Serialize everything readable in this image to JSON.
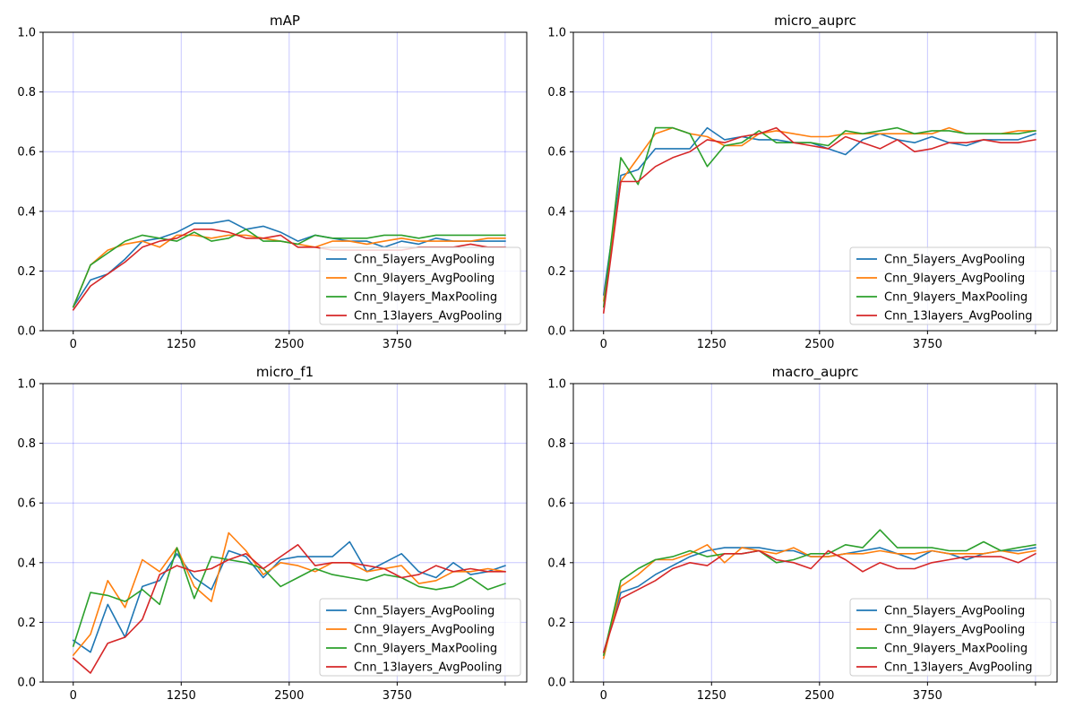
{
  "figure": {
    "legend_location": "lower right",
    "grid_color": "#0000ff"
  },
  "chart_data": [
    {
      "type": "line",
      "title": "mAP",
      "xlabel": "",
      "ylabel": "",
      "xlim": [
        -350,
        5250
      ],
      "ylim": [
        0,
        1
      ],
      "xticks": [
        0,
        1250,
        2500,
        3750,
        5000
      ],
      "xtick_labels": [
        "0",
        "1250",
        "2500",
        "3750",
        ""
      ],
      "yticks": [
        0,
        0.2,
        0.4,
        0.6,
        0.8,
        1.0
      ],
      "ytick_labels": [
        "0.0",
        "0.2",
        "0.4",
        "0.6",
        "0.8",
        "1.0"
      ],
      "x": [
        0,
        200,
        400,
        600,
        800,
        1000,
        1200,
        1400,
        1600,
        1800,
        2000,
        2200,
        2400,
        2600,
        2800,
        3000,
        3200,
        3400,
        3600,
        3800,
        4000,
        4200,
        4400,
        4600,
        4800,
        5000
      ],
      "series": [
        {
          "name": "Cnn_5layers_AvgPooling",
          "color": "#1f77b4",
          "values": [
            0.08,
            0.17,
            0.19,
            0.24,
            0.3,
            0.31,
            0.33,
            0.36,
            0.36,
            0.37,
            0.34,
            0.35,
            0.33,
            0.3,
            0.32,
            0.31,
            0.3,
            0.3,
            0.28,
            0.3,
            0.29,
            0.31,
            0.3,
            0.3,
            0.3,
            0.3
          ]
        },
        {
          "name": "Cnn_9layers_AvgPooling",
          "color": "#ff7f0e",
          "values": [
            0.08,
            0.22,
            0.27,
            0.29,
            0.3,
            0.28,
            0.32,
            0.32,
            0.31,
            0.32,
            0.32,
            0.31,
            0.3,
            0.29,
            0.28,
            0.3,
            0.3,
            0.29,
            0.3,
            0.31,
            0.3,
            0.3,
            0.3,
            0.3,
            0.31,
            0.31
          ]
        },
        {
          "name": "Cnn_9layers_MaxPooling",
          "color": "#2ca02c",
          "values": [
            0.08,
            0.22,
            0.26,
            0.3,
            0.32,
            0.31,
            0.3,
            0.33,
            0.3,
            0.31,
            0.34,
            0.3,
            0.3,
            0.29,
            0.32,
            0.31,
            0.31,
            0.31,
            0.32,
            0.32,
            0.31,
            0.32,
            0.32,
            0.32,
            0.32,
            0.32
          ]
        },
        {
          "name": "Cnn_13layers_AvgPooling",
          "color": "#d62728",
          "values": [
            0.07,
            0.15,
            0.19,
            0.23,
            0.28,
            0.3,
            0.31,
            0.34,
            0.34,
            0.33,
            0.31,
            0.31,
            0.32,
            0.28,
            0.28,
            0.27,
            0.27,
            0.27,
            0.27,
            0.27,
            0.28,
            0.28,
            0.28,
            0.29,
            0.28,
            0.28
          ]
        }
      ]
    },
    {
      "type": "line",
      "title": "micro_auprc",
      "xlabel": "",
      "ylabel": "",
      "xlim": [
        -350,
        5250
      ],
      "ylim": [
        0,
        1
      ],
      "xticks": [
        0,
        1250,
        2500,
        3750,
        5000
      ],
      "xtick_labels": [
        "0",
        "1250",
        "2500",
        "3750",
        ""
      ],
      "yticks": [
        0,
        0.2,
        0.4,
        0.6,
        0.8,
        1.0
      ],
      "ytick_labels": [
        "0.0",
        "0.2",
        "0.4",
        "0.6",
        "0.8",
        "1.0"
      ],
      "x": [
        0,
        200,
        400,
        600,
        800,
        1000,
        1200,
        1400,
        1600,
        1800,
        2000,
        2200,
        2400,
        2600,
        2800,
        3000,
        3200,
        3400,
        3600,
        3800,
        4000,
        4200,
        4400,
        4600,
        4800,
        5000
      ],
      "series": [
        {
          "name": "Cnn_5layers_AvgPooling",
          "color": "#1f77b4",
          "values": [
            0.12,
            0.52,
            0.54,
            0.61,
            0.61,
            0.61,
            0.68,
            0.64,
            0.65,
            0.64,
            0.64,
            0.63,
            0.63,
            0.61,
            0.59,
            0.64,
            0.66,
            0.64,
            0.63,
            0.65,
            0.63,
            0.62,
            0.64,
            0.64,
            0.64,
            0.66
          ]
        },
        {
          "name": "Cnn_9layers_AvgPooling",
          "color": "#ff7f0e",
          "values": [
            0.1,
            0.5,
            0.58,
            0.66,
            0.68,
            0.66,
            0.65,
            0.62,
            0.62,
            0.66,
            0.67,
            0.66,
            0.65,
            0.65,
            0.66,
            0.66,
            0.66,
            0.66,
            0.66,
            0.66,
            0.68,
            0.66,
            0.66,
            0.66,
            0.67,
            0.67
          ]
        },
        {
          "name": "Cnn_9layers_MaxPooling",
          "color": "#2ca02c",
          "values": [
            0.08,
            0.58,
            0.49,
            0.68,
            0.68,
            0.66,
            0.55,
            0.62,
            0.63,
            0.67,
            0.63,
            0.63,
            0.63,
            0.62,
            0.67,
            0.66,
            0.67,
            0.68,
            0.66,
            0.67,
            0.67,
            0.66,
            0.66,
            0.66,
            0.66,
            0.67
          ]
        },
        {
          "name": "Cnn_13layers_AvgPooling",
          "color": "#d62728",
          "values": [
            0.06,
            0.5,
            0.5,
            0.55,
            0.58,
            0.6,
            0.64,
            0.63,
            0.65,
            0.66,
            0.68,
            0.63,
            0.62,
            0.61,
            0.65,
            0.63,
            0.61,
            0.64,
            0.6,
            0.61,
            0.63,
            0.63,
            0.64,
            0.63,
            0.63,
            0.64
          ]
        }
      ]
    },
    {
      "type": "line",
      "title": "micro_f1",
      "xlabel": "",
      "ylabel": "",
      "xlim": [
        -350,
        5250
      ],
      "ylim": [
        0,
        1
      ],
      "xticks": [
        0,
        1250,
        2500,
        3750,
        5000
      ],
      "xtick_labels": [
        "0",
        "1250",
        "2500",
        "3750",
        ""
      ],
      "yticks": [
        0,
        0.2,
        0.4,
        0.6,
        0.8,
        1.0
      ],
      "ytick_labels": [
        "0.0",
        "0.2",
        "0.4",
        "0.6",
        "0.8",
        "1.0"
      ],
      "x": [
        0,
        200,
        400,
        600,
        800,
        1000,
        1200,
        1400,
        1600,
        1800,
        2000,
        2200,
        2400,
        2600,
        2800,
        3000,
        3200,
        3400,
        3600,
        3800,
        4000,
        4200,
        4400,
        4600,
        4800,
        5000
      ],
      "series": [
        {
          "name": "Cnn_5layers_AvgPooling",
          "color": "#1f77b4",
          "values": [
            0.14,
            0.1,
            0.26,
            0.15,
            0.32,
            0.34,
            0.43,
            0.35,
            0.31,
            0.44,
            0.42,
            0.35,
            0.41,
            0.42,
            0.42,
            0.42,
            0.47,
            0.37,
            0.4,
            0.43,
            0.37,
            0.35,
            0.4,
            0.36,
            0.37,
            0.39
          ]
        },
        {
          "name": "Cnn_9layers_AvgPooling",
          "color": "#ff7f0e",
          "values": [
            0.09,
            0.16,
            0.34,
            0.25,
            0.41,
            0.37,
            0.45,
            0.32,
            0.27,
            0.5,
            0.44,
            0.36,
            0.4,
            0.39,
            0.37,
            0.4,
            0.4,
            0.37,
            0.38,
            0.39,
            0.33,
            0.34,
            0.37,
            0.37,
            0.38,
            0.37
          ]
        },
        {
          "name": "Cnn_9layers_MaxPooling",
          "color": "#2ca02c",
          "values": [
            0.12,
            0.3,
            0.29,
            0.27,
            0.31,
            0.26,
            0.45,
            0.28,
            0.42,
            0.41,
            0.4,
            0.38,
            0.32,
            0.35,
            0.38,
            0.36,
            0.35,
            0.34,
            0.36,
            0.35,
            0.32,
            0.31,
            0.32,
            0.35,
            0.31,
            0.33
          ]
        },
        {
          "name": "Cnn_13layers_AvgPooling",
          "color": "#d62728",
          "values": [
            0.08,
            0.03,
            0.13,
            0.15,
            0.21,
            0.36,
            0.39,
            0.37,
            0.38,
            0.41,
            0.43,
            0.38,
            0.42,
            0.46,
            0.39,
            0.4,
            0.4,
            0.39,
            0.38,
            0.35,
            0.36,
            0.39,
            0.37,
            0.38,
            0.37,
            0.37
          ]
        }
      ]
    },
    {
      "type": "line",
      "title": "macro_auprc",
      "xlabel": "",
      "ylabel": "",
      "xlim": [
        -350,
        5250
      ],
      "ylim": [
        0,
        1
      ],
      "xticks": [
        0,
        1250,
        2500,
        3750,
        5000
      ],
      "xtick_labels": [
        "0",
        "1250",
        "2500",
        "3750",
        ""
      ],
      "yticks": [
        0,
        0.2,
        0.4,
        0.6,
        0.8,
        1.0
      ],
      "ytick_labels": [
        "0.0",
        "0.2",
        "0.4",
        "0.6",
        "0.8",
        "1.0"
      ],
      "x": [
        0,
        200,
        400,
        600,
        800,
        1000,
        1200,
        1400,
        1600,
        1800,
        2000,
        2200,
        2400,
        2600,
        2800,
        3000,
        3200,
        3400,
        3600,
        3800,
        4000,
        4200,
        4400,
        4600,
        4800,
        5000
      ],
      "series": [
        {
          "name": "Cnn_5layers_AvgPooling",
          "color": "#1f77b4",
          "values": [
            0.1,
            0.3,
            0.32,
            0.36,
            0.39,
            0.42,
            0.44,
            0.45,
            0.45,
            0.45,
            0.44,
            0.44,
            0.42,
            0.42,
            0.43,
            0.44,
            0.45,
            0.43,
            0.41,
            0.44,
            0.43,
            0.41,
            0.43,
            0.44,
            0.44,
            0.45
          ]
        },
        {
          "name": "Cnn_9layers_AvgPooling",
          "color": "#ff7f0e",
          "values": [
            0.08,
            0.32,
            0.36,
            0.41,
            0.41,
            0.43,
            0.46,
            0.4,
            0.45,
            0.44,
            0.43,
            0.45,
            0.42,
            0.42,
            0.43,
            0.43,
            0.44,
            0.43,
            0.43,
            0.44,
            0.43,
            0.43,
            0.43,
            0.44,
            0.43,
            0.44
          ]
        },
        {
          "name": "Cnn_9layers_MaxPooling",
          "color": "#2ca02c",
          "values": [
            0.09,
            0.34,
            0.38,
            0.41,
            0.42,
            0.44,
            0.42,
            0.43,
            0.43,
            0.44,
            0.4,
            0.41,
            0.43,
            0.43,
            0.46,
            0.45,
            0.51,
            0.45,
            0.45,
            0.45,
            0.44,
            0.44,
            0.47,
            0.44,
            0.45,
            0.46
          ]
        },
        {
          "name": "Cnn_13layers_AvgPooling",
          "color": "#d62728",
          "values": [
            0.1,
            0.28,
            0.31,
            0.34,
            0.38,
            0.4,
            0.39,
            0.43,
            0.43,
            0.44,
            0.41,
            0.4,
            0.38,
            0.44,
            0.41,
            0.37,
            0.4,
            0.38,
            0.38,
            0.4,
            0.41,
            0.42,
            0.42,
            0.42,
            0.4,
            0.43
          ]
        }
      ]
    }
  ]
}
